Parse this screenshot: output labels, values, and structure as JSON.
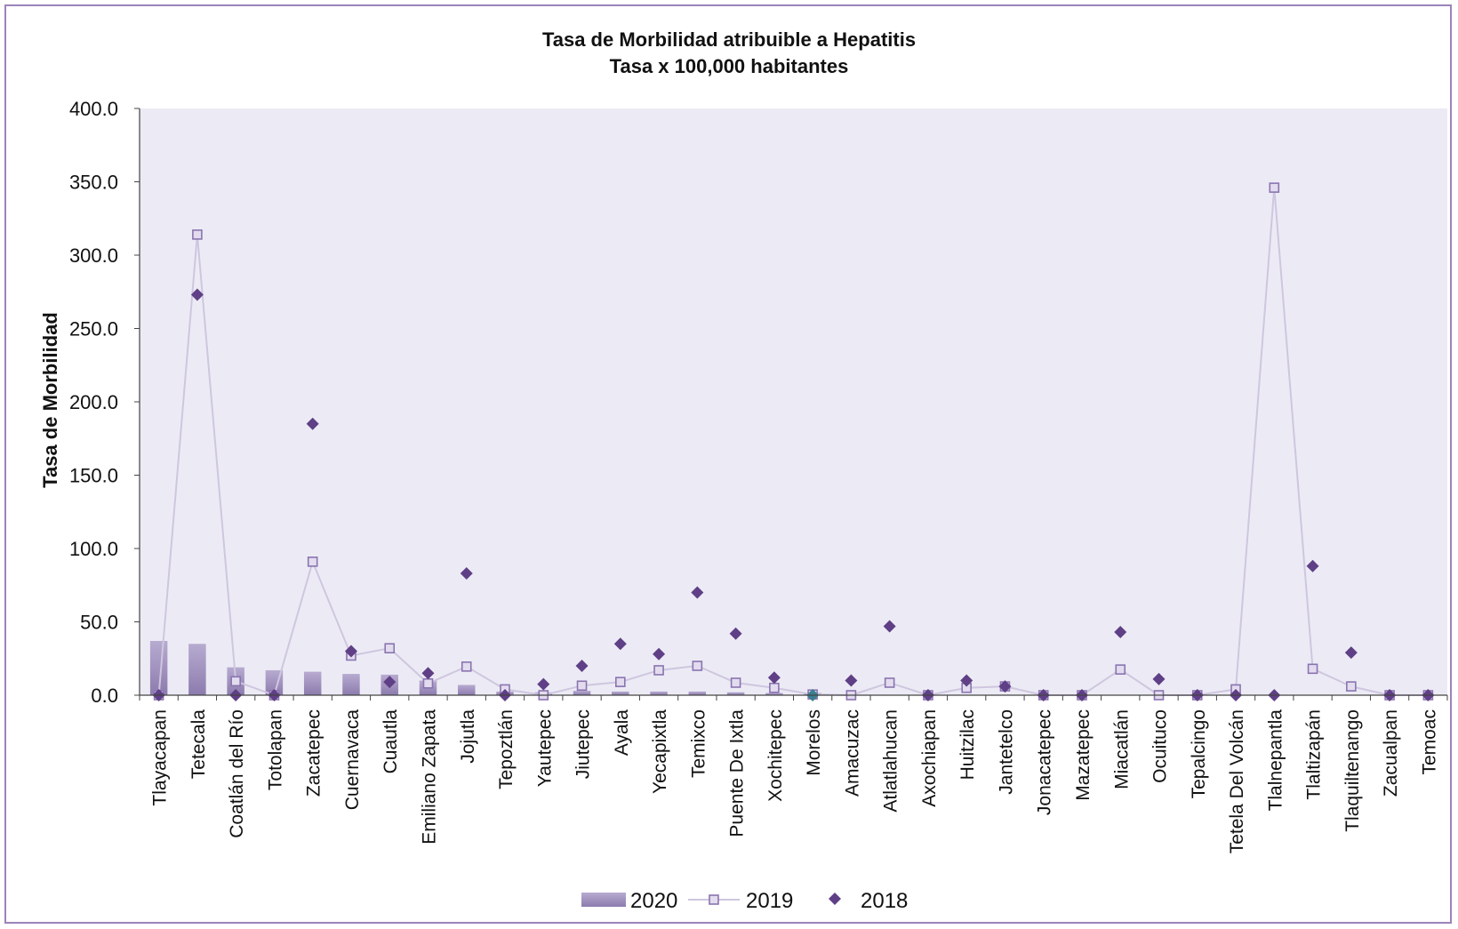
{
  "chart_data": {
    "type": "bar",
    "title": "Tasa de Morbilidad atribuible a Hepatitis",
    "subtitle": "Tasa x 100,000 habitantes",
    "ylabel": "Tasa de Morbilidad",
    "xlabel": "",
    "ylim": [
      0,
      400
    ],
    "yticks": [
      "0.0",
      "50.0",
      "100.0",
      "150.0",
      "200.0",
      "250.0",
      "300.0",
      "350.0",
      "400.0"
    ],
    "legend_position": "bottom",
    "categories": [
      "Tlayacapan",
      "Tetecala",
      "Coatlán del Río",
      "Totolapan",
      "Zacatepec",
      "Cuernavaca",
      "Cuautla",
      "Emiliano Zapata",
      "Jojutla",
      "Tepoztlán",
      "Yautepec",
      "Jiutepec",
      "Ayala",
      "Yecapixtla",
      "Temixco",
      "Puente De Ixtla",
      "Xochitepec",
      "Morelos",
      "Amacuzac",
      "Atlatlahucan",
      "Axochiapan",
      "Huitzilac",
      "Jantetelco",
      "Jonacatepec",
      "Mazatepec",
      "Miacatlán",
      "Ocuituco",
      "Tepalcingo",
      "Tetela Del Volcán",
      "Tlalnepantla",
      "Tlaltizapán",
      "Tlaquiltenango",
      "Zacualpan",
      "Temoac"
    ],
    "series": [
      {
        "name": "2020",
        "type": "bar",
        "color": "#a393bf",
        "values": [
          37.0,
          35.0,
          19.0,
          17.0,
          16.0,
          14.5,
          14.0,
          10.0,
          7.0,
          2.5,
          2.0,
          3.0,
          2.5,
          2.5,
          2.5,
          2.0,
          1.5,
          1.5,
          0,
          0,
          0,
          0,
          0,
          0,
          0,
          0,
          0,
          0,
          0,
          0,
          0,
          0,
          0,
          0
        ]
      },
      {
        "name": "2019",
        "type": "line",
        "color": "#8a74b0",
        "line_color": "#cfc6df",
        "values": [
          0.0,
          314.0,
          9.5,
          0.0,
          91.0,
          27.0,
          32.0,
          8.0,
          19.5,
          4.0,
          0.0,
          6.5,
          9.0,
          17.0,
          20.0,
          8.5,
          5.0,
          0.5,
          0.0,
          8.5,
          0.0,
          5.0,
          6.0,
          0.0,
          0.0,
          17.5,
          0.0,
          0.0,
          4.0,
          346.0,
          18.0,
          6.0,
          0.0,
          0.0
        ]
      },
      {
        "name": "2018",
        "type": "scatter",
        "color": "#5f3f86",
        "values": [
          0.0,
          273.0,
          0.0,
          0.0,
          185.0,
          30.0,
          9.0,
          15.0,
          83.0,
          0.0,
          7.5,
          20.0,
          35.0,
          28.0,
          70.0,
          42.0,
          12.0,
          0.0,
          10.0,
          47.0,
          0.0,
          10.0,
          6.0,
          0.0,
          0.0,
          43.0,
          11.0,
          0.0,
          0.0,
          0.0,
          88.0,
          29.0,
          0.0,
          0.0
        ]
      }
    ],
    "highlight_point": {
      "category": "Morelos",
      "color": "#3a7f8f"
    }
  }
}
